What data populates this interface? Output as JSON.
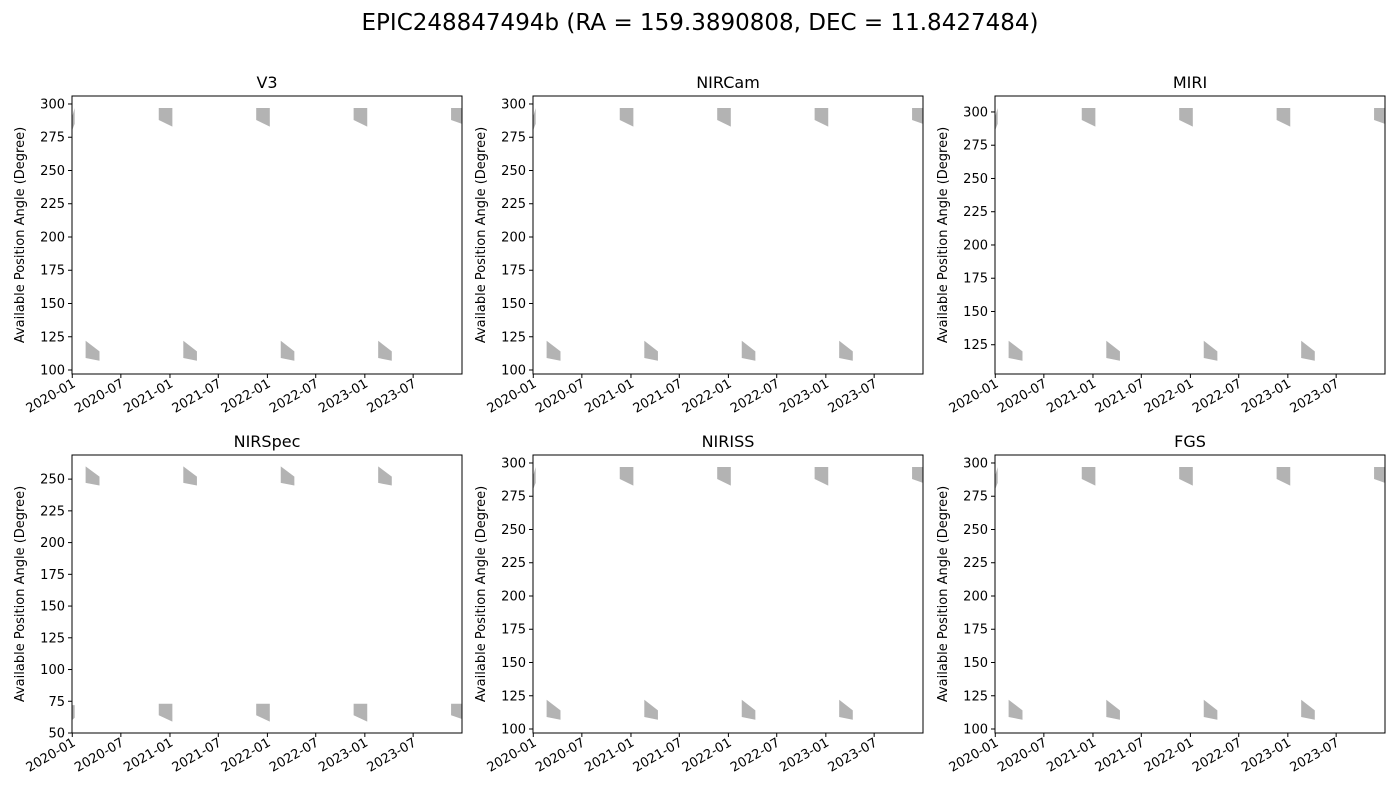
{
  "figure": {
    "title": "EPIC248847494b (RA = 159.3890808, DEC = 11.8427484)"
  },
  "chart_data": [
    {
      "type": "area",
      "title": "V3",
      "ylabel": "Available Position Angle (Degree)",
      "xlim": [
        "2019-12-31",
        "2023-12-31"
      ],
      "ylim": [
        97,
        306
      ],
      "xticks": [
        "2020-01",
        "2020-07",
        "2021-01",
        "2021-07",
        "2022-01",
        "2022-07",
        "2023-01",
        "2023-07"
      ],
      "yticks": [
        100,
        125,
        150,
        175,
        200,
        225,
        250,
        275,
        300
      ],
      "bands": [
        {
          "start": "2019-12-31",
          "end": "2020-01-10",
          "low_start": 280,
          "low_end": 285,
          "high_start": 290,
          "high_end": 297
        },
        {
          "start": "2020-02-20",
          "end": "2020-04-12",
          "low_start": 109,
          "low_end": 107,
          "high_start": 122,
          "high_end": 114
        },
        {
          "start": "2020-11-20",
          "end": "2021-01-10",
          "low_start": 288,
          "low_end": 283,
          "high_start": 297,
          "high_end": 297
        },
        {
          "start": "2021-02-20",
          "end": "2021-04-12",
          "low_start": 109,
          "low_end": 107,
          "high_start": 122,
          "high_end": 114
        },
        {
          "start": "2021-11-20",
          "end": "2022-01-10",
          "low_start": 288,
          "low_end": 283,
          "high_start": 297,
          "high_end": 297
        },
        {
          "start": "2022-02-20",
          "end": "2022-04-12",
          "low_start": 109,
          "low_end": 107,
          "high_start": 122,
          "high_end": 114
        },
        {
          "start": "2022-11-20",
          "end": "2023-01-10",
          "low_start": 288,
          "low_end": 283,
          "high_start": 297,
          "high_end": 297
        },
        {
          "start": "2023-02-20",
          "end": "2023-04-12",
          "low_start": 109,
          "low_end": 107,
          "high_start": 122,
          "high_end": 114
        },
        {
          "start": "2023-11-20",
          "end": "2023-12-31",
          "low_start": 288,
          "low_end": 285,
          "high_start": 297,
          "high_end": 297
        }
      ]
    },
    {
      "type": "area",
      "title": "NIRCam",
      "ylabel": "Available Position Angle (Degree)",
      "xlim": [
        "2019-12-31",
        "2023-12-31"
      ],
      "ylim": [
        97,
        306
      ],
      "xticks": [
        "2020-01",
        "2020-07",
        "2021-01",
        "2021-07",
        "2022-01",
        "2022-07",
        "2023-01",
        "2023-07"
      ],
      "yticks": [
        100,
        125,
        150,
        175,
        200,
        225,
        250,
        275,
        300
      ],
      "bands": [
        {
          "start": "2019-12-31",
          "end": "2020-01-10",
          "low_start": 280,
          "low_end": 285,
          "high_start": 290,
          "high_end": 297
        },
        {
          "start": "2020-02-20",
          "end": "2020-04-12",
          "low_start": 109,
          "low_end": 107,
          "high_start": 122,
          "high_end": 114
        },
        {
          "start": "2020-11-20",
          "end": "2021-01-10",
          "low_start": 288,
          "low_end": 283,
          "high_start": 297,
          "high_end": 297
        },
        {
          "start": "2021-02-20",
          "end": "2021-04-12",
          "low_start": 109,
          "low_end": 107,
          "high_start": 122,
          "high_end": 114
        },
        {
          "start": "2021-11-20",
          "end": "2022-01-10",
          "low_start": 288,
          "low_end": 283,
          "high_start": 297,
          "high_end": 297
        },
        {
          "start": "2022-02-20",
          "end": "2022-04-12",
          "low_start": 109,
          "low_end": 107,
          "high_start": 122,
          "high_end": 114
        },
        {
          "start": "2022-11-20",
          "end": "2023-01-10",
          "low_start": 288,
          "low_end": 283,
          "high_start": 297,
          "high_end": 297
        },
        {
          "start": "2023-02-20",
          "end": "2023-04-12",
          "low_start": 109,
          "low_end": 107,
          "high_start": 122,
          "high_end": 114
        },
        {
          "start": "2023-11-20",
          "end": "2023-12-31",
          "low_start": 288,
          "low_end": 285,
          "high_start": 297,
          "high_end": 297
        }
      ]
    },
    {
      "type": "area",
      "title": "MIRI",
      "ylabel": "Available Position Angle (Degree)",
      "xlim": [
        "2019-12-31",
        "2023-12-31"
      ],
      "ylim": [
        103,
        312
      ],
      "xticks": [
        "2020-01",
        "2020-07",
        "2021-01",
        "2021-07",
        "2022-01",
        "2022-07",
        "2023-01",
        "2023-07"
      ],
      "yticks": [
        125,
        150,
        175,
        200,
        225,
        250,
        275,
        300
      ],
      "bands": [
        {
          "start": "2019-12-31",
          "end": "2020-01-10",
          "low_start": 286,
          "low_end": 291,
          "high_start": 296,
          "high_end": 303
        },
        {
          "start": "2020-02-20",
          "end": "2020-04-12",
          "low_start": 115,
          "low_end": 113,
          "high_start": 128,
          "high_end": 120
        },
        {
          "start": "2020-11-20",
          "end": "2021-01-10",
          "low_start": 294,
          "low_end": 289,
          "high_start": 303,
          "high_end": 303
        },
        {
          "start": "2021-02-20",
          "end": "2021-04-12",
          "low_start": 115,
          "low_end": 113,
          "high_start": 128,
          "high_end": 120
        },
        {
          "start": "2021-11-20",
          "end": "2022-01-10",
          "low_start": 294,
          "low_end": 289,
          "high_start": 303,
          "high_end": 303
        },
        {
          "start": "2022-02-20",
          "end": "2022-04-12",
          "low_start": 115,
          "low_end": 113,
          "high_start": 128,
          "high_end": 120
        },
        {
          "start": "2022-11-20",
          "end": "2023-01-10",
          "low_start": 294,
          "low_end": 289,
          "high_start": 303,
          "high_end": 303
        },
        {
          "start": "2023-02-20",
          "end": "2023-04-12",
          "low_start": 115,
          "low_end": 113,
          "high_start": 128,
          "high_end": 120
        },
        {
          "start": "2023-11-20",
          "end": "2023-12-31",
          "low_start": 294,
          "low_end": 291,
          "high_start": 303,
          "high_end": 303
        }
      ]
    },
    {
      "type": "area",
      "title": "NIRSpec",
      "ylabel": "Available Position Angle (Degree)",
      "xlim": [
        "2019-12-31",
        "2023-12-31"
      ],
      "ylim": [
        50,
        269
      ],
      "xticks": [
        "2020-01",
        "2020-07",
        "2021-01",
        "2021-07",
        "2022-01",
        "2022-07",
        "2023-01",
        "2023-07"
      ],
      "yticks": [
        50,
        75,
        100,
        125,
        150,
        175,
        200,
        225,
        250
      ],
      "bands": [
        {
          "start": "2019-12-31",
          "end": "2020-01-10",
          "low_start": 60,
          "low_end": 62,
          "high_start": 72,
          "high_end": 72
        },
        {
          "start": "2020-02-20",
          "end": "2020-04-12",
          "low_start": 247,
          "low_end": 245,
          "high_start": 260,
          "high_end": 252
        },
        {
          "start": "2020-11-20",
          "end": "2021-01-10",
          "low_start": 64,
          "low_end": 59,
          "high_start": 73,
          "high_end": 73
        },
        {
          "start": "2021-02-20",
          "end": "2021-04-12",
          "low_start": 247,
          "low_end": 245,
          "high_start": 260,
          "high_end": 252
        },
        {
          "start": "2021-11-20",
          "end": "2022-01-10",
          "low_start": 64,
          "low_end": 59,
          "high_start": 73,
          "high_end": 73
        },
        {
          "start": "2022-02-20",
          "end": "2022-04-12",
          "low_start": 247,
          "low_end": 245,
          "high_start": 260,
          "high_end": 252
        },
        {
          "start": "2022-11-20",
          "end": "2023-01-10",
          "low_start": 64,
          "low_end": 59,
          "high_start": 73,
          "high_end": 73
        },
        {
          "start": "2023-02-20",
          "end": "2023-04-12",
          "low_start": 247,
          "low_end": 245,
          "high_start": 260,
          "high_end": 252
        },
        {
          "start": "2023-11-20",
          "end": "2023-12-31",
          "low_start": 64,
          "low_end": 61,
          "high_start": 73,
          "high_end": 73
        }
      ]
    },
    {
      "type": "area",
      "title": "NIRISS",
      "ylabel": "Available Position Angle (Degree)",
      "xlim": [
        "2019-12-31",
        "2023-12-31"
      ],
      "ylim": [
        97,
        306
      ],
      "xticks": [
        "2020-01",
        "2020-07",
        "2021-01",
        "2021-07",
        "2022-01",
        "2022-07",
        "2023-01",
        "2023-07"
      ],
      "yticks": [
        100,
        125,
        150,
        175,
        200,
        225,
        250,
        275,
        300
      ],
      "bands": [
        {
          "start": "2019-12-31",
          "end": "2020-01-10",
          "low_start": 280,
          "low_end": 285,
          "high_start": 290,
          "high_end": 297
        },
        {
          "start": "2020-02-20",
          "end": "2020-04-12",
          "low_start": 109,
          "low_end": 107,
          "high_start": 122,
          "high_end": 114
        },
        {
          "start": "2020-11-20",
          "end": "2021-01-10",
          "low_start": 288,
          "low_end": 283,
          "high_start": 297,
          "high_end": 297
        },
        {
          "start": "2021-02-20",
          "end": "2021-04-12",
          "low_start": 109,
          "low_end": 107,
          "high_start": 122,
          "high_end": 114
        },
        {
          "start": "2021-11-20",
          "end": "2022-01-10",
          "low_start": 288,
          "low_end": 283,
          "high_start": 297,
          "high_end": 297
        },
        {
          "start": "2022-02-20",
          "end": "2022-04-12",
          "low_start": 109,
          "low_end": 107,
          "high_start": 122,
          "high_end": 114
        },
        {
          "start": "2022-11-20",
          "end": "2023-01-10",
          "low_start": 288,
          "low_end": 283,
          "high_start": 297,
          "high_end": 297
        },
        {
          "start": "2023-02-20",
          "end": "2023-04-12",
          "low_start": 109,
          "low_end": 107,
          "high_start": 122,
          "high_end": 114
        },
        {
          "start": "2023-11-20",
          "end": "2023-12-31",
          "low_start": 288,
          "low_end": 285,
          "high_start": 297,
          "high_end": 297
        }
      ]
    },
    {
      "type": "area",
      "title": "FGS",
      "ylabel": "Available Position Angle (Degree)",
      "xlim": [
        "2019-12-31",
        "2023-12-31"
      ],
      "ylim": [
        97,
        306
      ],
      "xticks": [
        "2020-01",
        "2020-07",
        "2021-01",
        "2021-07",
        "2022-01",
        "2022-07",
        "2023-01",
        "2023-07"
      ],
      "yticks": [
        100,
        125,
        150,
        175,
        200,
        225,
        250,
        275,
        300
      ],
      "bands": [
        {
          "start": "2019-12-31",
          "end": "2020-01-10",
          "low_start": 280,
          "low_end": 285,
          "high_start": 290,
          "high_end": 297
        },
        {
          "start": "2020-02-20",
          "end": "2020-04-12",
          "low_start": 109,
          "low_end": 107,
          "high_start": 122,
          "high_end": 114
        },
        {
          "start": "2020-11-20",
          "end": "2021-01-10",
          "low_start": 288,
          "low_end": 283,
          "high_start": 297,
          "high_end": 297
        },
        {
          "start": "2021-02-20",
          "end": "2021-04-12",
          "low_start": 109,
          "low_end": 107,
          "high_start": 122,
          "high_end": 114
        },
        {
          "start": "2021-11-20",
          "end": "2022-01-10",
          "low_start": 288,
          "low_end": 283,
          "high_start": 297,
          "high_end": 297
        },
        {
          "start": "2022-02-20",
          "end": "2022-04-12",
          "low_start": 109,
          "low_end": 107,
          "high_start": 122,
          "high_end": 114
        },
        {
          "start": "2022-11-20",
          "end": "2023-01-10",
          "low_start": 288,
          "low_end": 283,
          "high_start": 297,
          "high_end": 297
        },
        {
          "start": "2023-02-20",
          "end": "2023-04-12",
          "low_start": 109,
          "low_end": 107,
          "high_start": 122,
          "high_end": 114
        },
        {
          "start": "2023-11-20",
          "end": "2023-12-31",
          "low_start": 288,
          "low_end": 285,
          "high_start": 297,
          "high_end": 297
        }
      ]
    }
  ],
  "style": {
    "band_color": "#b3b3b3",
    "axis_color": "#000000"
  }
}
